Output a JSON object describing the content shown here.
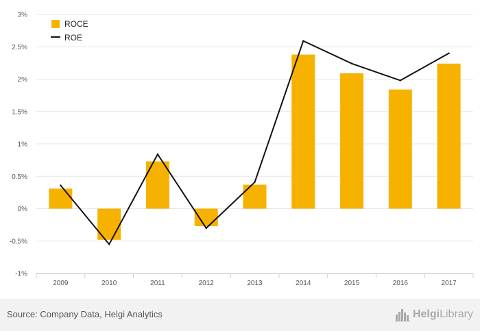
{
  "chart_data": {
    "type": "bar",
    "categories": [
      "2009",
      "2010",
      "2011",
      "2012",
      "2013",
      "2014",
      "2015",
      "2016",
      "2017"
    ],
    "series": [
      {
        "name": "ROCE",
        "type": "bar",
        "color": "#f7b200",
        "values": [
          0.31,
          -0.48,
          0.73,
          -0.27,
          0.37,
          2.38,
          2.09,
          1.84,
          2.24
        ]
      },
      {
        "name": "ROE",
        "type": "line",
        "color": "#111111",
        "values": [
          0.36,
          -0.55,
          0.84,
          -0.3,
          0.41,
          2.59,
          2.24,
          1.98,
          2.4
        ]
      }
    ],
    "ylim": [
      -1,
      3
    ],
    "yticks": [
      -1,
      -0.5,
      0,
      0.5,
      1,
      1.5,
      2,
      2.5,
      3
    ],
    "ytick_labels": [
      "-1%",
      "-0.5%",
      "0%",
      "0.5%",
      "1%",
      "1.5%",
      "2%",
      "2.5%",
      "3%"
    ],
    "grid": true,
    "legend_position": "top-left"
  },
  "footer": {
    "source": "Source: Company Data, Helgi Analytics",
    "logo_bold": "Helgi",
    "logo_regular": "Library"
  }
}
